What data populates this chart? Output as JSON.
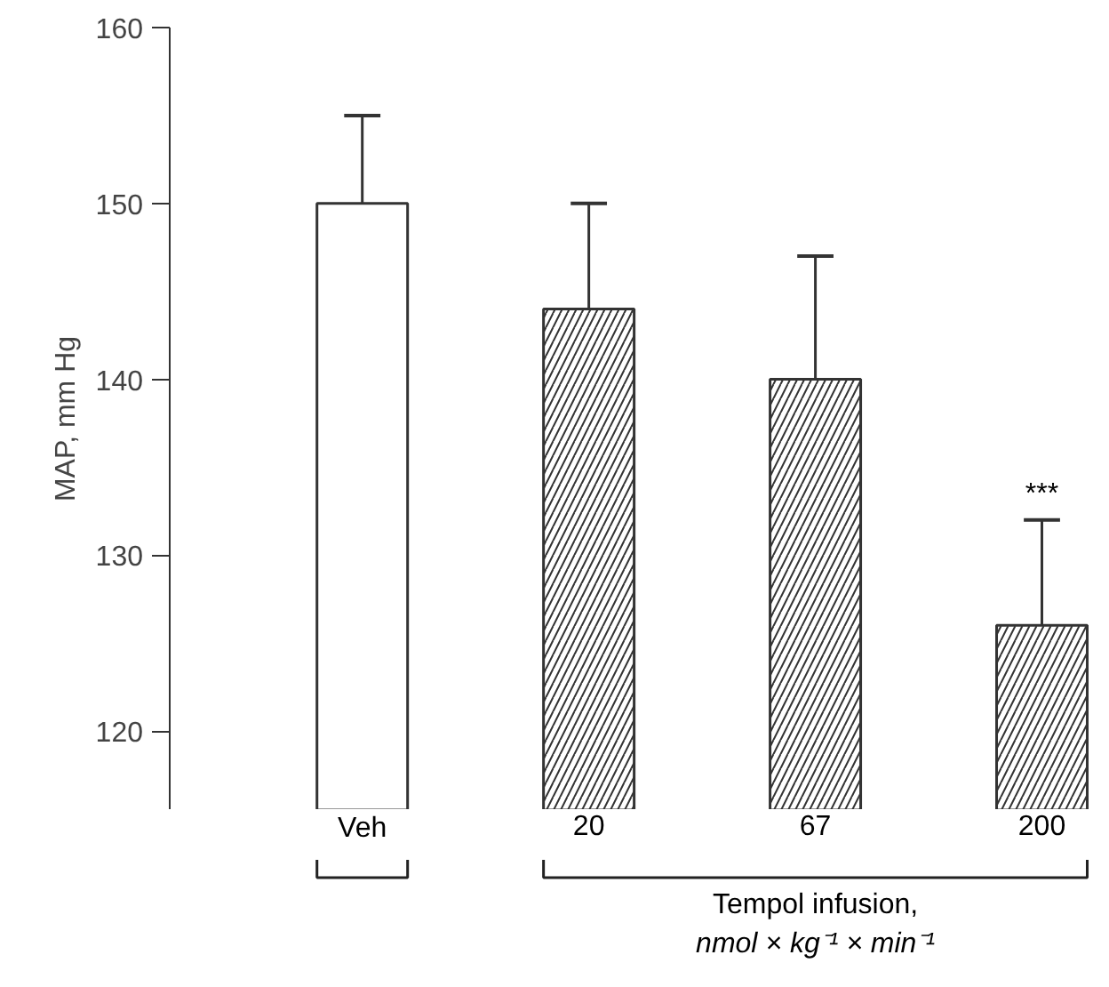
{
  "chart_data": {
    "type": "bar",
    "ylabel": "MAP, mm Hg",
    "xlabel": "Tempol infusion,\nnmol × kg⁻¹ × min⁻¹",
    "categories": [
      "Veh",
      "20",
      "67",
      "200"
    ],
    "values": [
      150,
      144,
      140,
      126
    ],
    "errors": [
      [
        150,
        155
      ],
      [
        144,
        150
      ],
      [
        140,
        147
      ],
      [
        126,
        132
      ]
    ],
    "colors": [
      "#ffffff",
      "#333333",
      "#333333",
      "#333333"
    ],
    "ylim": [
      115.5,
      160
    ],
    "yticks": [
      120,
      130,
      140,
      150,
      160
    ],
    "grid": false,
    "annotations": [
      "***"
    ]
  }
}
